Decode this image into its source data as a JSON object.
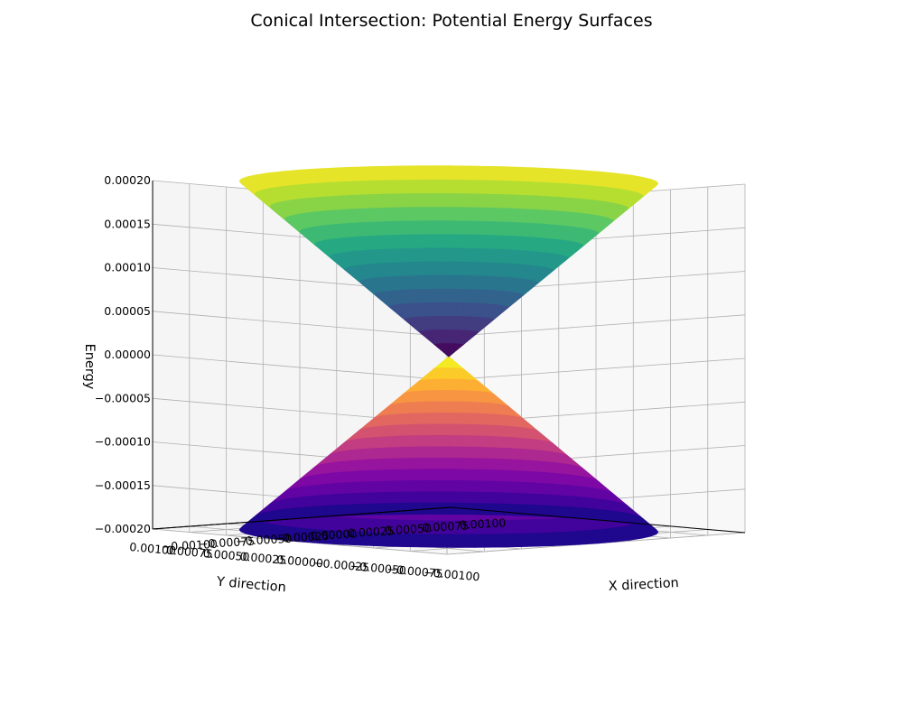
{
  "chart_data": {
    "type": "surface3d",
    "title": "Conical Intersection: Potential Energy Surfaces",
    "xlabel": "X direction",
    "ylabel": "Y direction",
    "zlabel": "Energy",
    "xlim": [
      -0.001,
      0.001
    ],
    "ylim": [
      -0.001,
      0.001
    ],
    "zlim": [
      -0.0002,
      0.0002
    ],
    "x_ticks": [
      "−0.00100",
      "−0.00075",
      "−0.00050",
      "−0.00025",
      "0.00000",
      "0.00025",
      "0.00050",
      "0.00075",
      "0.00100"
    ],
    "y_ticks": [
      "0.00100",
      "0.00075",
      "0.00050",
      "0.00025",
      "0.00000",
      "−0.00025",
      "−0.00050",
      "−0.00075",
      "−0.00100"
    ],
    "z_ticks": [
      "−0.00020",
      "−0.00015",
      "−0.00010",
      "−0.00005",
      "0.00000",
      "0.00005",
      "0.00010",
      "0.00015",
      "0.00020"
    ],
    "grid": true,
    "series": [
      {
        "colormap": "viridis",
        "kind": "upper cone (disc domain)",
        "max_energy": 0.0002,
        "min_energy": 0.0
      },
      {
        "colormap": "plasma",
        "kind": "lower cone (disc domain)",
        "max_energy": 0.0,
        "min_energy": -0.0002
      }
    ]
  }
}
